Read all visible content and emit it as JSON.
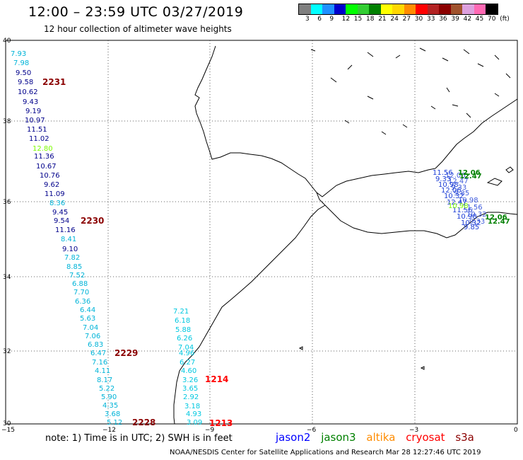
{
  "header": {
    "title": "12:00 – 23:59 UTC 03/27/2019",
    "subtitle": "12 hour collection of altimeter wave heights"
  },
  "color_scale": {
    "colors": [
      "#7f7f7f",
      "#00ffff",
      "#1e90ff",
      "#0000cd",
      "#00ff00",
      "#32cd32",
      "#008000",
      "#ffff00",
      "#ffd700",
      "#ff8c00",
      "#ff0000",
      "#b22222",
      "#8b0000",
      "#a0522d",
      "#dda0dd",
      "#ff69b4",
      "#000000"
    ],
    "labels": [
      "3",
      "6",
      "9",
      "12",
      "15",
      "18",
      "21",
      "24",
      "27",
      "30",
      "33",
      "36",
      "39",
      "42",
      "45",
      "70",
      "(ft)"
    ]
  },
  "axes": {
    "lat_labels": [
      "40",
      "38",
      "36",
      "34",
      "32",
      "30"
    ],
    "lon_labels": [
      "−15",
      "−12",
      "−9",
      "−6",
      "−3",
      "0"
    ]
  },
  "tracks": [
    {
      "satellite": "jason2",
      "color": "#00008b",
      "values": [
        "9.50",
        "9.58",
        "10.62",
        "9.43",
        "9.19",
        "10.97",
        "11.51",
        "11.02",
        "11.36",
        "10.67",
        "10.76",
        "9.62",
        "11.09",
        "9.45",
        "9.54",
        "11.16",
        "9.10"
      ]
    },
    {
      "satellite": "jason3",
      "color": "#7cfc00",
      "values": [
        "12.80"
      ]
    },
    {
      "satellite": "swh-cyan",
      "color": "#00b4d8",
      "values": [
        "7.93",
        "7.98",
        "8.36",
        "8.41",
        "7.82",
        "8.85",
        "7.52",
        "6.88",
        "7.70",
        "6.36",
        "6.44",
        "5.63",
        "7.04",
        "7.06",
        "6.83",
        "6.47",
        "7.16",
        "4.11",
        "8.17",
        "5.22",
        "5.90",
        "4.35",
        "3.68",
        "5.12"
      ]
    },
    {
      "satellite": "coastal",
      "color": "#00c8e0",
      "values": [
        "7.21",
        "6.18",
        "5.88",
        "6.26",
        "7.04",
        "4.96",
        "6.27",
        "4.60",
        "3.26",
        "3.65",
        "2.92",
        "3.18",
        "4.93",
        "3.09"
      ]
    }
  ],
  "time_markers": [
    "2231",
    "2230",
    "2229",
    "2228",
    "1214",
    "1213"
  ],
  "med_cluster": {
    "values": [
      "11.56",
      "9.33",
      "10.98",
      "12.06",
      "10.32",
      "12.47",
      "9.85"
    ]
  },
  "footer": {
    "note": "note: 1) Time is in UTC; 2) SWH is in feet",
    "satellites": [
      {
        "name": "jason2",
        "color": "#0000ff"
      },
      {
        "name": "jason3",
        "color": "#008000"
      },
      {
        "name": "altika",
        "color": "#ff8c00"
      },
      {
        "name": "cryosat",
        "color": "#ff0000"
      },
      {
        "name": "s3a",
        "color": "#8b0000"
      }
    ],
    "credit": "NOAA/NESDIS Center for Satellite Applications and Research   Mar 28 12:27:46 UTC 2019"
  }
}
